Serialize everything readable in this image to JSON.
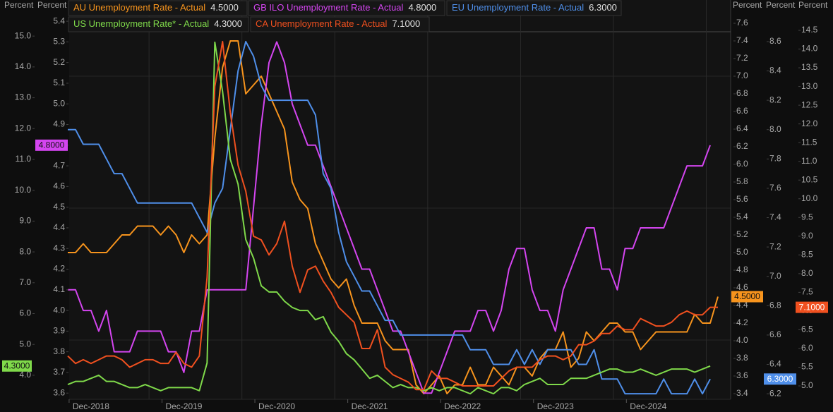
{
  "chart_data": {
    "type": "line",
    "categories": [
      null,
      null,
      null,
      "Dec-2018",
      null,
      null,
      null,
      null,
      null,
      null,
      null,
      null,
      null,
      null,
      null,
      "Dec-2019",
      null,
      null,
      null,
      null,
      null,
      null,
      null,
      null,
      null,
      null,
      null,
      "Dec-2020",
      null,
      null,
      null,
      null,
      null,
      null,
      null,
      null,
      null,
      null,
      null,
      "Dec-2021",
      null,
      null,
      null,
      null,
      null,
      null,
      null,
      null,
      null,
      null,
      null,
      "Dec-2022",
      null,
      null,
      null,
      null,
      null,
      null,
      null,
      null,
      null,
      null,
      null,
      "Dec-2023",
      null,
      null,
      null,
      null,
      null,
      null,
      null,
      null,
      null,
      null,
      null,
      "Dec-2024",
      null,
      null,
      null,
      null,
      null,
      null,
      null,
      null,
      null
    ],
    "y_axes": [
      {
        "side": "left",
        "label": "Percent",
        "lim": [
          3.22,
          15.85
        ],
        "ticks": [
          {
            "value": 4,
            "label": "4.0"
          },
          {
            "value": 5,
            "label": "5.0"
          },
          {
            "value": 6,
            "label": "6.0"
          },
          {
            "value": 7,
            "label": "7.0"
          },
          {
            "value": 8,
            "label": "8.0"
          },
          {
            "value": 9,
            "label": "9.0"
          },
          {
            "value": 10,
            "label": "10.0"
          },
          {
            "value": 11,
            "label": "11.0"
          },
          {
            "value": 12,
            "label": "12.0"
          },
          {
            "value": 13,
            "label": "13.0"
          },
          {
            "value": 14,
            "label": "14.0"
          },
          {
            "value": 15,
            "label": "15.0"
          }
        ]
      },
      {
        "side": "left",
        "label": "Percent",
        "lim": [
          3.57,
          5.455
        ],
        "ticks": [
          3.6,
          3.7,
          3.8,
          3.9,
          {
            "value": 4,
            "label": "4.0"
          },
          4.1,
          4.2,
          4.3,
          4.4,
          4.5,
          4.6,
          4.7,
          4.8,
          4.9,
          {
            "value": 5,
            "label": "5.0"
          },
          5.1,
          5.2,
          5.3,
          5.4
        ]
      },
      {
        "side": "right",
        "label": "Percent",
        "lim": [
          3.336,
          7.752
        ],
        "ticks": [
          3.4,
          3.6,
          3.8,
          {
            "value": 4,
            "label": "4.0"
          },
          4.2,
          4.4,
          4.6,
          4.8,
          {
            "value": 5,
            "label": "5.0"
          },
          5.2,
          5.4,
          5.6,
          5.8,
          {
            "value": 6,
            "label": "6.0"
          },
          6.2,
          6.4,
          6.6,
          6.8,
          {
            "value": 7,
            "label": "7.0"
          },
          7.2,
          7.4,
          7.6
        ]
      },
      {
        "side": "right",
        "label": "Percent",
        "lim": [
          6.162,
          8.816
        ],
        "ticks": [
          6.2,
          6.4,
          6.6,
          6.8,
          {
            "value": 7,
            "label": "7.0"
          },
          7.2,
          7.4,
          7.6,
          7.8,
          {
            "value": 8,
            "label": "8.0"
          },
          8.2,
          8.4,
          8.6
        ]
      },
      {
        "side": "right",
        "label": "Percent",
        "lim": [
          4.642,
          15.047
        ],
        "ticks": [
          {
            "value": 5,
            "label": "5.0"
          },
          5.5,
          {
            "value": 6,
            "label": "6.0"
          },
          6.5,
          {
            "value": 7,
            "label": "7.0"
          },
          7.5,
          {
            "value": 8,
            "label": "8.0"
          },
          8.5,
          {
            "value": 9,
            "label": "9.0"
          },
          9.5,
          {
            "value": 10,
            "label": "10.0"
          },
          10.5,
          {
            "value": 11,
            "label": "11.0"
          },
          11.5,
          {
            "value": 12,
            "label": "12.0"
          },
          12.5,
          {
            "value": 13,
            "label": "13.0"
          },
          13.5,
          {
            "value": 14,
            "label": "14.0"
          },
          14.5
        ]
      }
    ],
    "series": [
      {
        "name": "AU Unemployment Rate - Actual",
        "color": "#f7941d",
        "axis": 2,
        "values": [
          5.0,
          5.0,
          5.1,
          5.0,
          5.0,
          5.0,
          5.1,
          5.2,
          5.2,
          5.3,
          5.3,
          5.3,
          5.2,
          5.3,
          5.2,
          5.0,
          5.2,
          5.1,
          5.2,
          6.3,
          7.1,
          7.4,
          7.4,
          6.8,
          6.9,
          7.0,
          6.8,
          6.6,
          6.4,
          5.8,
          5.6,
          5.5,
          5.1,
          4.9,
          4.7,
          4.6,
          4.7,
          4.4,
          4.2,
          4.2,
          4.2,
          4.0,
          3.9,
          3.9,
          3.9,
          3.5,
          3.4,
          3.5,
          3.6,
          3.4,
          3.5,
          3.5,
          3.7,
          3.5,
          3.5,
          3.7,
          3.6,
          3.5,
          3.7,
          3.7,
          3.6,
          3.8,
          3.9,
          3.9,
          4.1,
          3.7,
          3.8,
          4.1,
          4.0,
          4.1,
          4.2,
          4.2,
          4.1,
          4.1,
          3.9,
          4.0,
          4.1,
          4.1,
          4.1,
          4.1,
          4.1,
          4.3,
          4.2,
          4.2,
          4.5
        ],
        "value_labels": {
          "84": "4.5000"
        }
      },
      {
        "name": "GB ILO Unemployment Rate - Actual",
        "color": "#d445f0",
        "axis": 1,
        "values": [
          4.1,
          4.1,
          4.0,
          4.0,
          3.9,
          4.0,
          3.8,
          3.8,
          3.8,
          3.9,
          3.9,
          3.9,
          3.9,
          3.8,
          3.8,
          3.7,
          3.9,
          3.9,
          4.1,
          4.1,
          4.1,
          4.1,
          4.1,
          4.1,
          4.5,
          4.9,
          5.2,
          5.3,
          5.2,
          5.0,
          4.9,
          4.8,
          4.8,
          4.7,
          4.6,
          4.5,
          4.4,
          4.3,
          4.2,
          4.2,
          4.1,
          4.0,
          3.9,
          3.9,
          3.8,
          3.7,
          3.6,
          3.6,
          3.7,
          3.8,
          3.9,
          3.9,
          3.9,
          4.0,
          4.0,
          3.9,
          4.0,
          4.2,
          4.3,
          4.3,
          4.1,
          4.0,
          4.0,
          3.9,
          4.1,
          4.2,
          4.3,
          4.4,
          4.4,
          4.2,
          4.2,
          4.1,
          4.3,
          4.3,
          4.4,
          4.4,
          4.4,
          4.4,
          4.5,
          4.6,
          4.7,
          4.7,
          4.7,
          4.8,
          null
        ],
        "value_labels": {
          "83": "4.8000"
        }
      },
      {
        "name": "EU Unemployment Rate - Actual",
        "color": "#4f8fea",
        "axis": 3,
        "values": [
          8.0,
          8.0,
          7.9,
          7.9,
          7.9,
          7.8,
          7.7,
          7.7,
          7.6,
          7.5,
          7.5,
          7.5,
          7.5,
          7.5,
          7.5,
          7.5,
          7.5,
          7.4,
          7.3,
          7.5,
          7.6,
          8.0,
          8.4,
          8.6,
          8.5,
          8.3,
          8.2,
          8.2,
          8.2,
          8.2,
          8.2,
          8.2,
          8.1,
          7.7,
          7.6,
          7.3,
          7.1,
          7.0,
          6.9,
          6.9,
          6.8,
          6.7,
          6.7,
          6.6,
          6.6,
          6.6,
          6.6,
          6.6,
          6.6,
          6.6,
          6.6,
          6.6,
          6.5,
          6.5,
          6.5,
          6.4,
          6.4,
          6.4,
          6.5,
          6.4,
          6.5,
          6.4,
          6.5,
          6.5,
          6.5,
          6.5,
          6.4,
          6.4,
          6.5,
          6.3,
          6.3,
          6.3,
          6.2,
          6.2,
          6.2,
          6.2,
          6.2,
          6.3,
          6.2,
          6.2,
          6.2,
          6.3,
          6.2,
          6.3,
          null
        ],
        "value_labels": {
          "83": "6.3000"
        }
      },
      {
        "name": "US Unemployment Rate* - Actual",
        "color": "#7fd94a",
        "axis": 0,
        "values": [
          3.7,
          3.8,
          3.8,
          3.9,
          4.0,
          3.8,
          3.8,
          3.7,
          3.6,
          3.6,
          3.7,
          3.6,
          3.5,
          3.6,
          3.6,
          3.6,
          3.6,
          3.5,
          4.4,
          14.8,
          13.2,
          11.0,
          10.2,
          8.4,
          7.8,
          6.9,
          6.7,
          6.7,
          6.4,
          6.2,
          6.1,
          6.1,
          5.8,
          5.9,
          5.4,
          5.1,
          4.7,
          4.5,
          4.2,
          3.9,
          4.0,
          3.8,
          3.6,
          3.7,
          3.6,
          3.6,
          3.5,
          3.6,
          3.5,
          3.6,
          3.6,
          3.5,
          3.4,
          3.6,
          3.5,
          3.4,
          3.6,
          3.6,
          3.5,
          3.7,
          3.8,
          3.9,
          3.7,
          3.7,
          3.7,
          3.9,
          3.9,
          3.9,
          4.0,
          4.1,
          4.2,
          4.2,
          4.1,
          4.1,
          4.2,
          4.1,
          4.0,
          4.1,
          4.2,
          4.2,
          4.2,
          4.1,
          4.2,
          4.3,
          null
        ],
        "value_labels": {
          "83": "4.3000"
        }
      },
      {
        "name": "CA Unemployment Rate - Actual",
        "color": "#f0501f",
        "axis": 4,
        "values": [
          5.8,
          5.6,
          5.7,
          5.6,
          5.7,
          5.8,
          5.8,
          5.7,
          5.5,
          5.6,
          5.7,
          5.7,
          5.6,
          5.6,
          5.9,
          5.6,
          5.5,
          5.8,
          7.9,
          13.0,
          14.2,
          12.3,
          10.9,
          10.2,
          9.0,
          8.9,
          8.5,
          8.8,
          9.4,
          8.2,
          7.5,
          8.1,
          8.2,
          7.8,
          7.5,
          7.1,
          6.9,
          6.7,
          6.0,
          6.0,
          6.5,
          5.5,
          5.3,
          5.2,
          5.1,
          4.9,
          4.9,
          5.4,
          5.2,
          5.2,
          5.1,
          5.0,
          5.0,
          5.0,
          5.0,
          5.0,
          5.2,
          5.4,
          5.5,
          5.5,
          5.5,
          5.7,
          5.8,
          5.8,
          5.7,
          5.8,
          6.1,
          6.1,
          6.2,
          6.4,
          6.4,
          6.6,
          6.5,
          6.5,
          6.8,
          6.7,
          6.6,
          6.6,
          6.7,
          6.9,
          7.0,
          6.9,
          6.9,
          7.1,
          7.1
        ],
        "value_labels": {
          "84": "7.1000"
        }
      }
    ]
  }
}
